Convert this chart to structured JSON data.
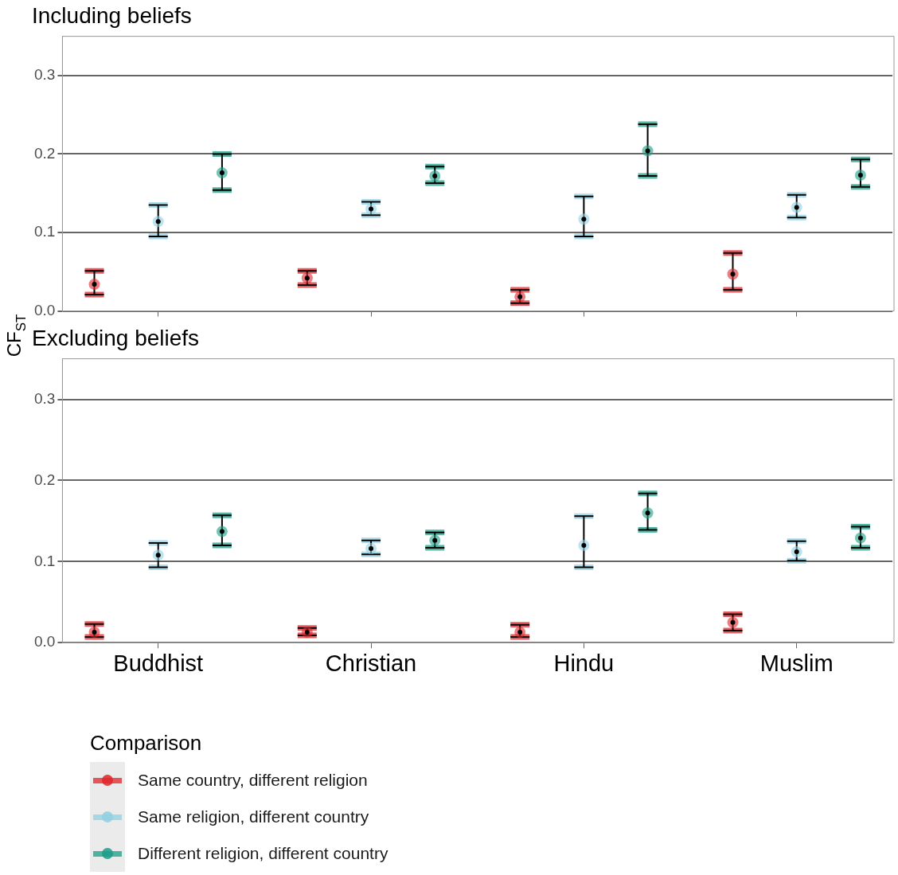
{
  "chart_data": [
    {
      "type": "scatter",
      "title": "Including beliefs",
      "ylabel": "CF$_{ST}$",
      "categories": [
        null,
        null,
        null,
        null
      ],
      "ylim": [
        0,
        0.35
      ],
      "yticks": [
        {
          "value": 0,
          "label": "0.0"
        },
        0.1,
        0.2,
        0.3
      ],
      "grid": "y",
      "tick_labels": "y",
      "marker": "circle",
      "series": [
        {
          "color": "#e0262b",
          "values": [
            0.034,
            0.042,
            0.018,
            0.047
          ],
          "errors": [
            [
              0.021,
              0.051
            ],
            [
              0.033,
              0.051
            ],
            [
              0.01,
              0.027
            ],
            [
              0.027,
              0.074
            ]
          ]
        },
        {
          "color": "#8fd0e3",
          "values": [
            0.114,
            0.13,
            0.117,
            0.132
          ],
          "errors": [
            [
              0.095,
              0.135
            ],
            [
              0.122,
              0.139
            ],
            [
              0.095,
              0.146
            ],
            [
              0.119,
              0.148
            ]
          ]
        },
        {
          "color": "#1b9e87",
          "values": [
            0.176,
            0.172,
            0.204,
            0.173
          ],
          "errors": [
            [
              0.154,
              0.2
            ],
            [
              0.163,
              0.184
            ],
            [
              0.172,
              0.238
            ],
            [
              0.158,
              0.193
            ]
          ]
        }
      ]
    },
    {
      "type": "scatter",
      "title": "Excluding beliefs",
      "categories": [
        "Buddhist",
        "Christian",
        "Hindu",
        "Muslim"
      ],
      "ylim": [
        0,
        0.35
      ],
      "yticks": [
        {
          "value": 0,
          "label": "0.0"
        },
        0.1,
        0.2,
        0.3
      ],
      "grid": "y",
      "marker": "circle",
      "legend": "bottom",
      "legend_title": "Comparison",
      "series": [
        {
          "name": "Same country, different religion",
          "color": "#e0262b",
          "values": [
            0.013,
            0.013,
            0.013,
            0.025
          ],
          "errors": [
            [
              0.007,
              0.023
            ],
            [
              0.009,
              0.018
            ],
            [
              0.007,
              0.022
            ],
            [
              0.015,
              0.035
            ]
          ]
        },
        {
          "name": "Same religion, different country",
          "color": "#8fd0e3",
          "values": [
            0.108,
            0.116,
            0.12,
            0.112
          ],
          "errors": [
            [
              0.093,
              0.123
            ],
            [
              0.109,
              0.126
            ],
            [
              0.093,
              0.156
            ],
            [
              0.101,
              0.125
            ]
          ]
        },
        {
          "name": "Different religion, different country",
          "color": "#1b9e87",
          "values": [
            0.137,
            0.126,
            0.16,
            0.129
          ],
          "errors": [
            [
              0.12,
              0.157
            ],
            [
              0.117,
              0.136
            ],
            [
              0.139,
              0.184
            ],
            [
              0.117,
              0.143
            ]
          ]
        }
      ]
    }
  ]
}
